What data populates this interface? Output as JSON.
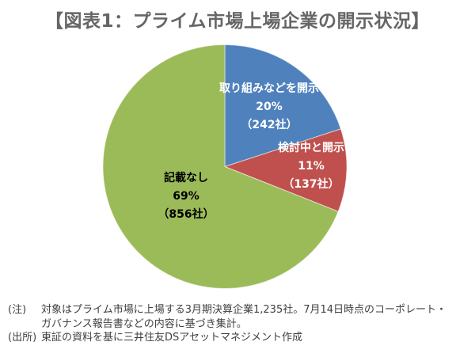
{
  "title": "【図表1：プライム市場上場企業の開示状況】",
  "chart_data": {
    "type": "pie",
    "title": "プライム市場上場企業の開示状況",
    "unit": "社",
    "start_angle_deg": 0,
    "direction": "clockwise",
    "slices": [
      {
        "label": "取り組みなどを開示",
        "percent": 20,
        "percent_label": "20%",
        "count": 242,
        "count_label": "（242社）",
        "color": "#4f81bd",
        "text_color": "#ffffff"
      },
      {
        "label": "検討中と開示",
        "percent": 11,
        "percent_label": "11%",
        "count": 137,
        "count_label": "（137社）",
        "color": "#c0504d",
        "text_color": "#ffffff"
      },
      {
        "label": "記載なし",
        "percent": 69,
        "percent_label": "69%",
        "count": 856,
        "count_label": "（856社）",
        "color": "#9bbb59",
        "text_color": "#000000"
      }
    ]
  },
  "notes": [
    {
      "label": "(注)",
      "text": "対象はプライム市場に上場する3月期決算企業1,235社。7月14日時点のコーポレート・ガバナンス報告書などの内容に基づき集計。"
    },
    {
      "label": "(出所)",
      "text": "東証の資料を基に三井住友DSアセットマネジメント作成"
    }
  ]
}
